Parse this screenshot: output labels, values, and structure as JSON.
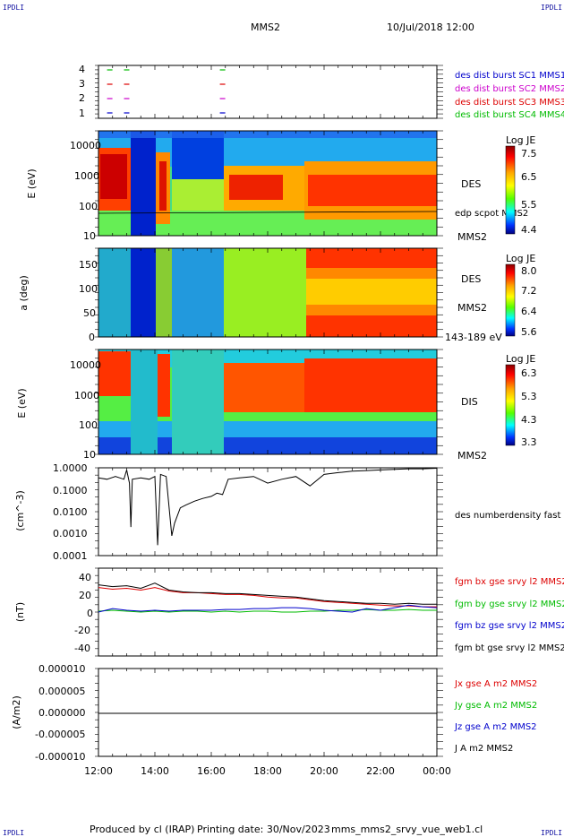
{
  "header": {
    "corner_left": "IPDLI",
    "corner_right": "IPDLI",
    "spacecraft": "MMS2",
    "date_time": "10/Jul/2018 12:00"
  },
  "footer": {
    "produced_by": "Produced by cl (IRAP)",
    "printing_date": "Printing date: 30/Nov/2023",
    "file_name": "mms_mms2_srvy_vue_web1.cl",
    "corner_left": "IPDLI",
    "corner_right": "IPDLI"
  },
  "colors": {
    "mms1": "#0000cc",
    "mms2": "#cc00cc",
    "mms3": "#dd0000",
    "mms4": "#00bb00",
    "bx": "#dd0000",
    "by": "#00bb00",
    "bz": "#0000cc",
    "bt": "#000000"
  },
  "chart_data": [
    {
      "type": "scatter",
      "id": "burst",
      "yticks": [
        "1",
        "2",
        "3",
        "4"
      ],
      "legend": [
        "des dist burst SC1 MMS1",
        "des dist burst SC2 MMS2",
        "des dist burst SC3 MMS3",
        "des dist burst SC4 MMS4"
      ],
      "burst_hours": [
        12.4,
        13.0,
        16.4
      ]
    },
    {
      "type": "heatmap",
      "id": "des_energy",
      "ylabel": "E (eV)",
      "yticks": [
        "10",
        "100",
        "1000",
        "10000"
      ],
      "label": "DES",
      "sublabel": "MMS2",
      "overlay_label": "edp scpot MMS2",
      "colorbar_title": "Log JE",
      "colorbar_ticks": [
        "7.5",
        "6.5",
        "5.5",
        "4.4"
      ]
    },
    {
      "type": "heatmap",
      "id": "des_pitch",
      "ylabel": "a (deg)",
      "yticks": [
        "0",
        "50",
        "100",
        "150"
      ],
      "label": "DES",
      "sublabel": "MMS2",
      "energy_range": "143-189 eV",
      "colorbar_title": "Log JE",
      "colorbar_ticks": [
        "8.0",
        "7.2",
        "6.4",
        "5.6"
      ]
    },
    {
      "type": "heatmap",
      "id": "dis_energy",
      "ylabel": "E (eV)",
      "yticks": [
        "10",
        "100",
        "1000",
        "10000"
      ],
      "label": "DIS",
      "sublabel": "MMS2",
      "colorbar_title": "Log JE",
      "colorbar_ticks": [
        "6.3",
        "5.3",
        "4.3",
        "3.3"
      ]
    },
    {
      "type": "line",
      "id": "density",
      "ylabel": "(cm^-3)",
      "yticks": [
        "0.0001",
        "0.0010",
        "0.0100",
        "0.1000",
        "1.0000"
      ],
      "legend": [
        "des numberdensity fast M"
      ],
      "series": [
        {
          "x": [
            12.0,
            12.3,
            12.6,
            12.9,
            13.0,
            13.1,
            13.15,
            13.2,
            13.5,
            13.8,
            14.0,
            14.1,
            14.2,
            14.4,
            14.6,
            14.7,
            14.9,
            15.1,
            15.4,
            15.7,
            16.0,
            16.2,
            16.4,
            16.6,
            17.0,
            17.5,
            18.0,
            18.5,
            19.0,
            19.5,
            20.0,
            20.5,
            21.0,
            21.5,
            22.0,
            22.5,
            23.0,
            23.5,
            24.0
          ],
          "y": [
            0.35,
            0.3,
            0.4,
            0.3,
            0.8,
            0.2,
            0.002,
            0.3,
            0.35,
            0.3,
            0.4,
            0.0003,
            0.5,
            0.4,
            0.0008,
            0.003,
            0.015,
            0.02,
            0.03,
            0.04,
            0.05,
            0.07,
            0.06,
            0.3,
            0.35,
            0.4,
            0.2,
            0.3,
            0.4,
            0.15,
            0.5,
            0.6,
            0.7,
            0.75,
            0.8,
            0.85,
            0.9,
            0.9,
            0.95
          ]
        }
      ]
    },
    {
      "type": "line",
      "id": "magnetic",
      "ylabel": "(nT)",
      "yticks": [
        "-40",
        "-20",
        "0",
        "20",
        "40"
      ],
      "ylim": [
        -50,
        50
      ],
      "x": [
        12.0,
        12.5,
        13.0,
        13.5,
        14.0,
        14.5,
        15.0,
        15.5,
        16.0,
        16.5,
        17.0,
        17.5,
        18.0,
        18.5,
        19.0,
        19.5,
        20.0,
        20.5,
        21.0,
        21.5,
        22.0,
        22.5,
        23.0,
        23.5,
        24.0
      ],
      "series": [
        {
          "name": "fgm bx gse srvy l2 MMS2",
          "values": [
            28,
            26,
            27,
            25,
            28,
            24,
            22,
            22,
            21,
            20,
            20,
            19,
            17,
            16,
            16,
            14,
            12,
            11,
            10,
            9,
            8,
            7,
            7,
            6,
            6
          ]
        },
        {
          "name": "fgm by gse srvy l2 MMS2",
          "values": [
            1,
            2,
            1,
            0,
            1,
            0,
            1,
            1,
            0,
            1,
            0,
            1,
            1,
            0,
            0,
            1,
            1,
            2,
            2,
            3,
            2,
            2,
            3,
            2,
            2
          ]
        },
        {
          "name": "fgm bz gse srvy l2 MMS2",
          "values": [
            0,
            4,
            2,
            1,
            2,
            1,
            2,
            2,
            2,
            3,
            3,
            4,
            4,
            5,
            5,
            4,
            2,
            1,
            0,
            4,
            2,
            5,
            8,
            6,
            5
          ]
        },
        {
          "name": "fgm bt gse srvy l2 MMS2",
          "values": [
            31,
            29,
            30,
            27,
            33,
            25,
            23,
            22,
            22,
            21,
            21,
            20,
            19,
            18,
            17,
            15,
            13,
            12,
            11,
            10,
            10,
            9,
            10,
            9,
            9
          ]
        }
      ]
    },
    {
      "type": "line",
      "id": "current",
      "ylabel": "(A/m2)",
      "yticks": [
        "-0.000010",
        "-0.000005",
        "0.000000",
        "0.000005",
        "0.000010"
      ],
      "ylim": [
        -1e-05,
        1e-05
      ],
      "series": [
        {
          "name": "Jx gse A m2 MMS2",
          "values": [
            0
          ]
        },
        {
          "name": "Jy gse A m2 MMS2",
          "values": [
            0
          ]
        },
        {
          "name": "Jz gse A m2 MMS2",
          "values": [
            0
          ]
        },
        {
          "name": "J A m2 MMS2",
          "values": [
            0
          ]
        }
      ]
    }
  ],
  "xaxis": {
    "ticks": [
      "12:00",
      "14:00",
      "16:00",
      "18:00",
      "20:00",
      "22:00",
      "00:00"
    ],
    "hours": [
      12,
      14,
      16,
      18,
      20,
      22,
      24
    ],
    "range": [
      12,
      24
    ]
  }
}
